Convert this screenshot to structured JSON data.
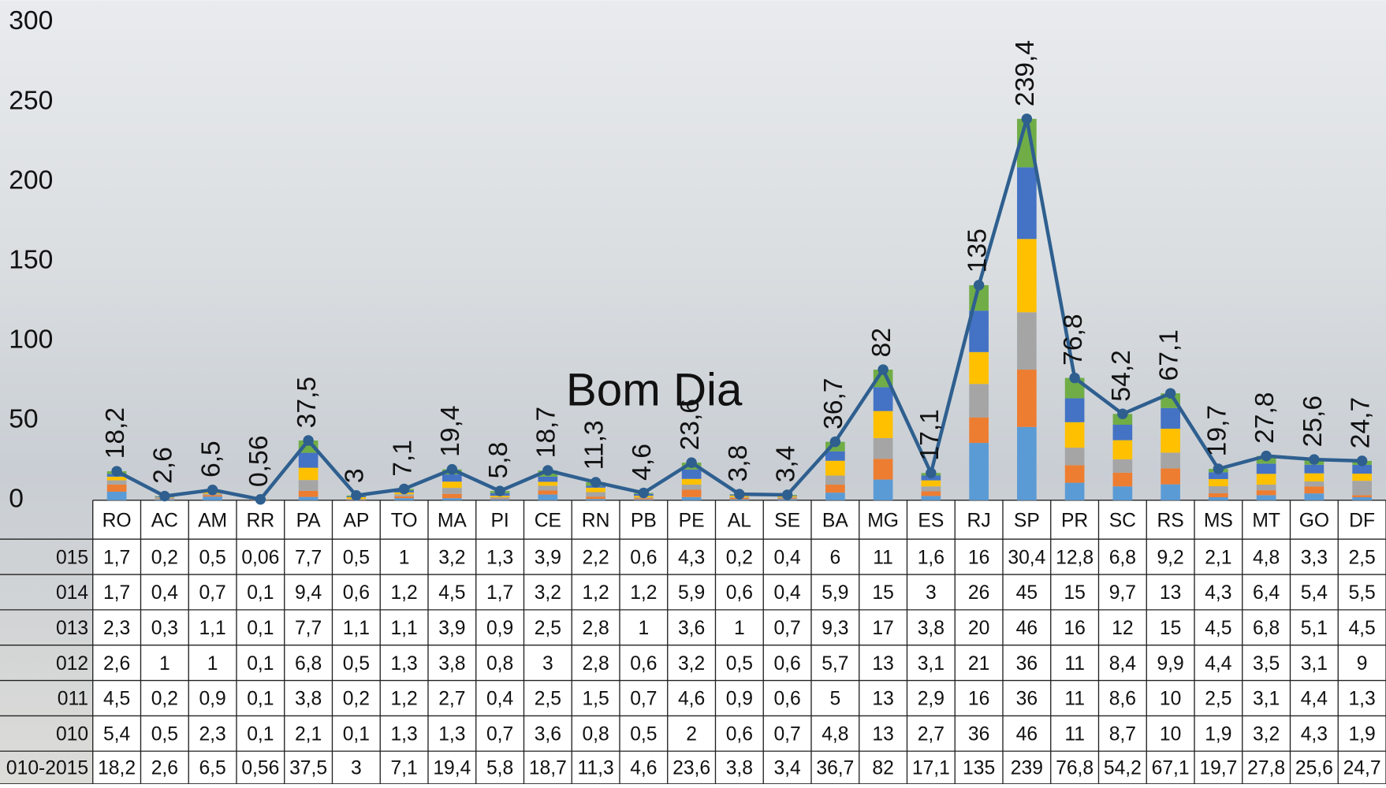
{
  "chart_data": {
    "type": "bar_line_table",
    "overlay_text": "Bom Dia",
    "categories": [
      "RO",
      "AC",
      "AM",
      "RR",
      "PA",
      "AP",
      "TO",
      "MA",
      "PI",
      "CE",
      "RN",
      "PB",
      "PE",
      "AL",
      "SE",
      "BA",
      "MG",
      "ES",
      "RJ",
      "SP",
      "PR",
      "SC",
      "RS",
      "MS",
      "MT",
      "GO",
      "DF"
    ],
    "ylim": [
      0,
      300
    ],
    "yticks": [
      0,
      50,
      100,
      150,
      200,
      250,
      300
    ],
    "grid": false,
    "series": [
      {
        "name": "010",
        "color": "#5b9bd5",
        "values": [
          5.4,
          0.5,
          2.3,
          0.1,
          2.1,
          0.1,
          1.3,
          1.3,
          0.7,
          3.6,
          0.8,
          0.5,
          2,
          0.6,
          0.7,
          4.8,
          13,
          2.7,
          36,
          46,
          11,
          8.7,
          10,
          1.9,
          3.2,
          4.3,
          1.9
        ],
        "value_labels": [
          "5,4",
          "0,5",
          "2,3",
          "0,1",
          "2,1",
          "0,1",
          "1,3",
          "1,3",
          "0,7",
          "3,6",
          "0,8",
          "0,5",
          "2",
          "0,6",
          "0,7",
          "4,8",
          "13",
          "2,7",
          "36",
          "46",
          "11",
          "8,7",
          "10",
          "1,9",
          "3,2",
          "4,3",
          "1,9"
        ]
      },
      {
        "name": "011",
        "color": "#ed7d31",
        "values": [
          4.5,
          0.2,
          0.9,
          0.1,
          3.8,
          0.2,
          1.2,
          2.7,
          0.4,
          2.5,
          1.5,
          0.7,
          4.6,
          0.9,
          0.6,
          5,
          13,
          2.9,
          16,
          36,
          11,
          8.6,
          10,
          2.5,
          3.1,
          4.4,
          1.3
        ],
        "value_labels": [
          "4,5",
          "0,2",
          "0,9",
          "0,1",
          "3,8",
          "0,2",
          "1,2",
          "2,7",
          "0,4",
          "2,5",
          "1,5",
          "0,7",
          "4,6",
          "0,9",
          "0,6",
          "5",
          "13",
          "2,9",
          "16",
          "36",
          "11",
          "8,6",
          "10",
          "2,5",
          "3,1",
          "4,4",
          "1,3"
        ]
      },
      {
        "name": "012",
        "color": "#a5a5a5",
        "values": [
          2.6,
          1,
          1,
          0.1,
          6.8,
          0.5,
          1.3,
          3.8,
          0.8,
          3,
          2.8,
          0.6,
          3.2,
          0.5,
          0.6,
          5.7,
          13,
          3.1,
          21,
          36,
          11,
          8.4,
          9.9,
          4.4,
          3.5,
          3.1,
          9
        ],
        "value_labels": [
          "2,6",
          "1",
          "1",
          "0,1",
          "6,8",
          "0,5",
          "1,3",
          "3,8",
          "0,8",
          "3",
          "2,8",
          "0,6",
          "3,2",
          "0,5",
          "0,6",
          "5,7",
          "13",
          "3,1",
          "21",
          "36",
          "11",
          "8,4",
          "9,9",
          "4,4",
          "3,5",
          "3,1",
          "9"
        ]
      },
      {
        "name": "013",
        "color": "#ffc000",
        "values": [
          2.3,
          0.3,
          1.1,
          0.1,
          7.7,
          1.1,
          1.1,
          3.9,
          0.9,
          2.5,
          2.8,
          1,
          3.6,
          1,
          0.7,
          9.3,
          17,
          3.8,
          20,
          46,
          16,
          12,
          15,
          4.5,
          6.8,
          5.1,
          4.5
        ],
        "value_labels": [
          "2,3",
          "0,3",
          "1,1",
          "0,1",
          "7,7",
          "1,1",
          "1,1",
          "3,9",
          "0,9",
          "2,5",
          "2,8",
          "1",
          "3,6",
          "1",
          "0,7",
          "9,3",
          "17",
          "3,8",
          "20",
          "46",
          "16",
          "12",
          "15",
          "4,5",
          "6,8",
          "5,1",
          "4,5"
        ]
      },
      {
        "name": "014",
        "color": "#4472c4",
        "values": [
          1.7,
          0.4,
          0.7,
          0.1,
          9.4,
          0.6,
          1.2,
          4.5,
          1.7,
          3.2,
          1.2,
          1.2,
          5.9,
          0.6,
          0.4,
          5.9,
          15,
          3,
          26,
          45,
          15,
          9.7,
          13,
          4.3,
          6.4,
          5.4,
          5.5
        ],
        "value_labels": [
          "1,7",
          "0,4",
          "0,7",
          "0,1",
          "9,4",
          "0,6",
          "1,2",
          "4,5",
          "1,7",
          "3,2",
          "1,2",
          "1,2",
          "5,9",
          "0,6",
          "0,4",
          "5,9",
          "15",
          "3",
          "26",
          "45",
          "15",
          "9,7",
          "13",
          "4,3",
          "6,4",
          "5,4",
          "5,5"
        ]
      },
      {
        "name": "015",
        "color": "#70ad47",
        "values": [
          1.7,
          0.2,
          0.5,
          0.06,
          7.7,
          0.5,
          1,
          3.2,
          1.3,
          3.9,
          2.2,
          0.6,
          4.3,
          0.2,
          0.4,
          6,
          11,
          1.6,
          16,
          30.4,
          12.8,
          6.8,
          9.2,
          2.1,
          4.8,
          3.3,
          2.5
        ],
        "value_labels": [
          "1,7",
          "0,2",
          "0,5",
          "0,06",
          "7,7",
          "0,5",
          "1",
          "3,2",
          "1,3",
          "3,9",
          "2,2",
          "0,6",
          "4,3",
          "0,2",
          "0,4",
          "6",
          "11",
          "1,6",
          "16",
          "30,4",
          "12,8",
          "6,8",
          "9,2",
          "2,1",
          "4,8",
          "3,3",
          "2,5"
        ]
      },
      {
        "name": "010-2015",
        "color": "#2e5f8f",
        "type": "line",
        "values": [
          18.2,
          2.6,
          6.5,
          0.56,
          37.5,
          3,
          7.1,
          19.4,
          5.8,
          18.7,
          11.3,
          4.6,
          23.6,
          3.8,
          3.4,
          36.7,
          82,
          17.1,
          135,
          239.4,
          76.8,
          54.2,
          67.1,
          19.7,
          27.8,
          25.6,
          24.7
        ],
        "value_labels": [
          "18,2",
          "2,6",
          "6,5",
          "0,56",
          "37,5",
          "3",
          "7,1",
          "19,4",
          "5,8",
          "18,7",
          "11,3",
          "4,6",
          "23,6",
          "3,8",
          "3,4",
          "36,7",
          "82",
          "17,1",
          "135",
          "239,4",
          "76,8",
          "54,2",
          "67,1",
          "19,7",
          "27,8",
          "25,6",
          "24,7"
        ],
        "table_labels": [
          "18,2",
          "2,6",
          "6,5",
          "0,56",
          "37,5",
          "3",
          "7,1",
          "19,4",
          "5,8",
          "18,7",
          "11,3",
          "4,6",
          "23,6",
          "3,8",
          "3,4",
          "36,7",
          "82",
          "17,1",
          "135",
          "239",
          "76,8",
          "54,2",
          "67,1",
          "19,7",
          "27,8",
          "25,6",
          "24,7"
        ]
      }
    ]
  }
}
